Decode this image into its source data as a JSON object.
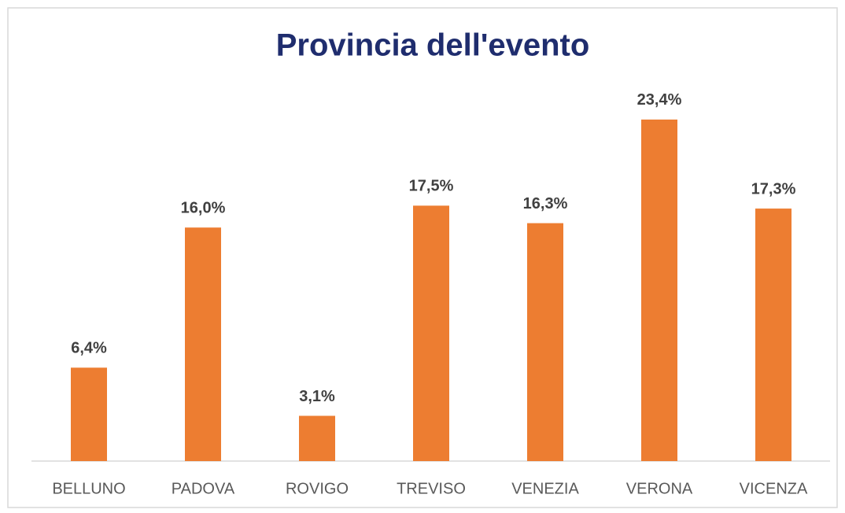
{
  "chart_data": {
    "type": "bar",
    "title": "Provincia dell'evento",
    "categories": [
      "BELLUNO",
      "PADOVA",
      "ROVIGO",
      "TREVISO",
      "VENEZIA",
      "VERONA",
      "VICENZA"
    ],
    "values": [
      6.4,
      16.0,
      3.1,
      17.5,
      16.3,
      23.4,
      17.3
    ],
    "value_labels": [
      "6,4%",
      "16,0%",
      "3,1%",
      "17,5%",
      "16,3%",
      "23,4%",
      "17,3%"
    ],
    "color": "#ed7d31"
  }
}
